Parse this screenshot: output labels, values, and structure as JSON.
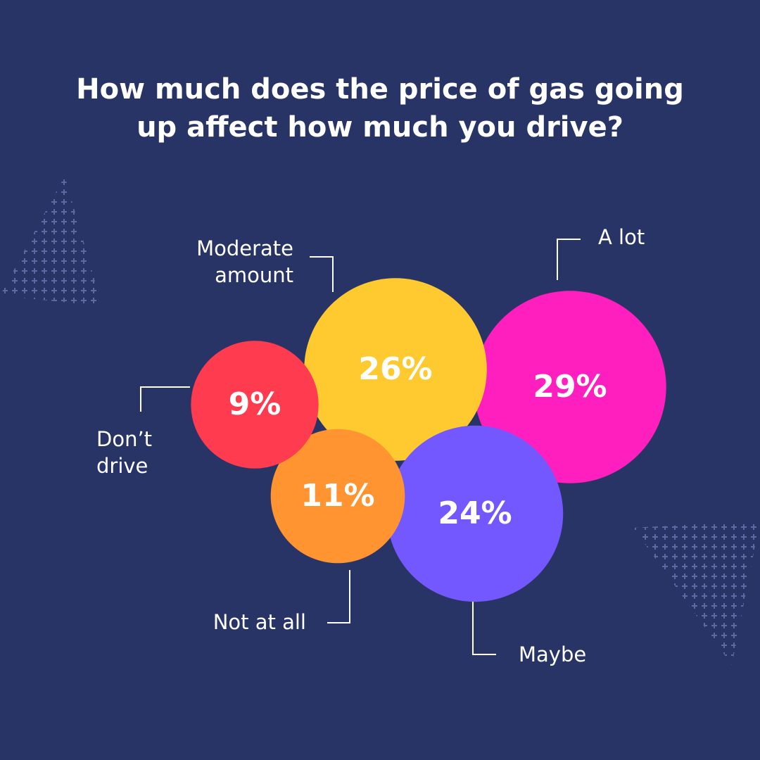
{
  "chart_data": {
    "type": "bubble",
    "title": "How much does the price of gas going up affect how much you drive?",
    "categories": [
      "A lot",
      "Moderate amount",
      "Maybe",
      "Not at all",
      "Don’t drive"
    ],
    "values": [
      29,
      26,
      24,
      11,
      9
    ],
    "value_labels": [
      "29%",
      "26%",
      "24%",
      "11%",
      "9%"
    ],
    "colors": [
      "#ff1fbf",
      "#ffc930",
      "#7357ff",
      "#ff9430",
      "#ff3b4f"
    ]
  }
}
